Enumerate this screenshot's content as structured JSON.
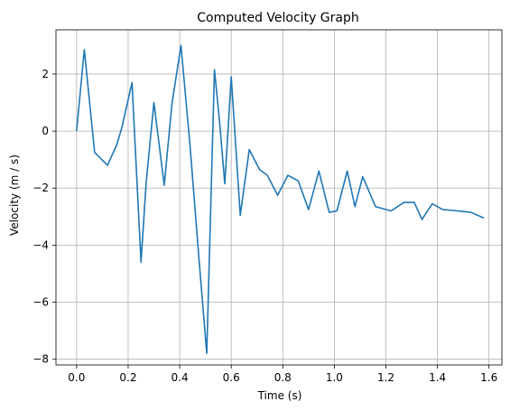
{
  "chart_data": {
    "type": "line",
    "title": "Computed Velocity Graph",
    "xlabel": "Time (s)",
    "ylabel": "Velocity (m / s)",
    "xlim": [
      -0.08,
      1.65
    ],
    "ylim": [
      -8.2,
      3.55
    ],
    "xticks": [
      0.0,
      0.2,
      0.4,
      0.6,
      0.8,
      1.0,
      1.2,
      1.4,
      1.6
    ],
    "xtick_labels": [
      "0.0",
      "0.2",
      "0.4",
      "0.6",
      "0.8",
      "1.0",
      "1.2",
      "1.4",
      "1.6"
    ],
    "yticks": [
      -8,
      -6,
      -4,
      -2,
      0,
      2
    ],
    "ytick_labels": [
      "−8",
      "−6",
      "−4",
      "−2",
      "0",
      "2"
    ],
    "grid": true,
    "line_color": "#1f77b4",
    "series": [
      {
        "x": [
          0.0,
          0.03,
          0.07,
          0.12,
          0.155,
          0.175,
          0.215,
          0.25,
          0.27,
          0.3,
          0.34,
          0.37,
          0.405,
          0.44,
          0.475,
          0.505,
          0.535,
          0.555,
          0.575,
          0.6,
          0.635,
          0.67,
          0.71,
          0.74,
          0.78,
          0.82,
          0.86,
          0.9,
          0.94,
          0.98,
          1.01,
          1.05,
          1.08,
          1.11,
          1.16,
          1.22,
          1.27,
          1.31,
          1.34,
          1.38,
          1.42,
          1.48,
          1.53,
          1.58
        ],
        "y": [
          0.0,
          2.85,
          -0.75,
          -1.2,
          -0.5,
          0.1,
          1.7,
          -4.6,
          -1.8,
          1.0,
          -1.9,
          0.95,
          3.0,
          -0.5,
          -4.5,
          -7.8,
          2.15,
          0.3,
          -1.85,
          1.9,
          -2.95,
          -0.65,
          -1.35,
          -1.55,
          -2.25,
          -1.55,
          -1.75,
          -2.75,
          -1.4,
          -2.85,
          -2.8,
          -1.4,
          -2.65,
          -1.6,
          -2.65,
          -2.8,
          -2.5,
          -2.5,
          -3.1,
          -2.55,
          -2.75,
          -2.8,
          -2.85,
          -3.05
        ]
      }
    ]
  }
}
